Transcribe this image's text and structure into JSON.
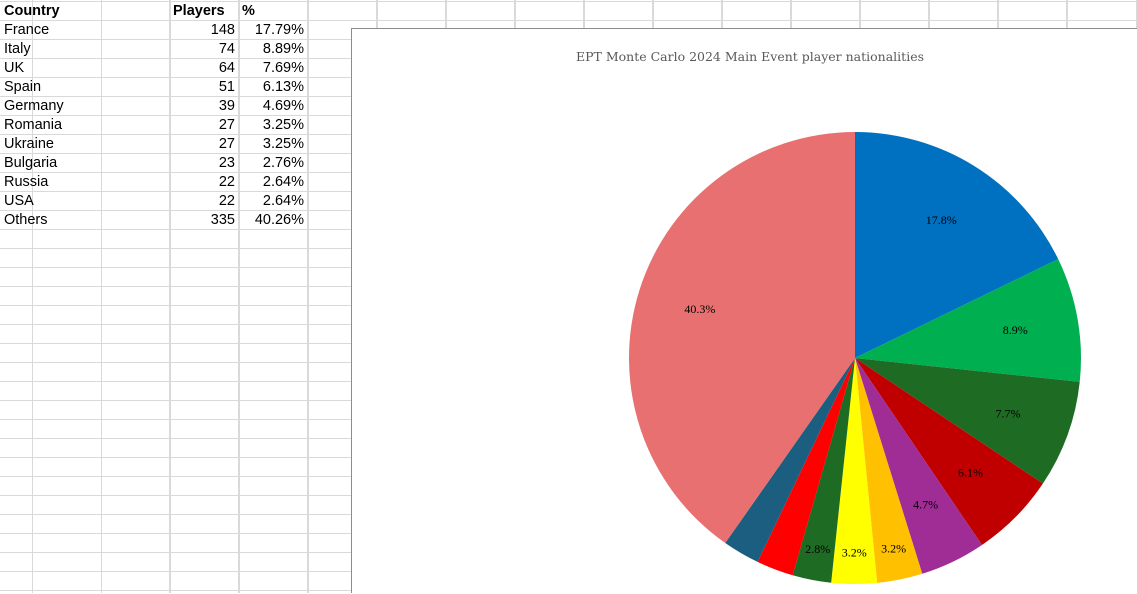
{
  "sheet": {
    "headers": {
      "country": "Country",
      "players": "Players",
      "percent": "%"
    },
    "rows": [
      {
        "country": "France",
        "players": "148",
        "percent": "17.79%"
      },
      {
        "country": "Italy",
        "players": "74",
        "percent": "8.89%"
      },
      {
        "country": "UK",
        "players": "64",
        "percent": "7.69%"
      },
      {
        "country": "Spain",
        "players": "51",
        "percent": "6.13%"
      },
      {
        "country": "Germany",
        "players": "39",
        "percent": "4.69%"
      },
      {
        "country": "Romania",
        "players": "27",
        "percent": "3.25%"
      },
      {
        "country": "Ukraine",
        "players": "27",
        "percent": "3.25%"
      },
      {
        "country": "Bulgaria",
        "players": "23",
        "percent": "2.76%"
      },
      {
        "country": "Russia",
        "players": "22",
        "percent": "2.64%"
      },
      {
        "country": "USA",
        "players": "22",
        "percent": "2.64%"
      },
      {
        "country": "Others",
        "players": "335",
        "percent": "40.26%"
      }
    ]
  },
  "chart_data": {
    "type": "pie",
    "title": "EPT Monte Carlo 2024 Main Event player nationalities",
    "categories": [
      "France",
      "Italy",
      "UK",
      "Spain",
      "Germany",
      "Romania",
      "Ukraine",
      "Bulgaria",
      "Russia",
      "USA",
      "Others"
    ],
    "values": [
      148,
      74,
      64,
      51,
      39,
      27,
      27,
      23,
      22,
      22,
      335
    ],
    "labels": [
      "17.8%",
      "8.9%",
      "7.7%",
      "6.1%",
      "4.7%",
      "3.2%",
      "3.2%",
      "2.8%",
      "",
      "",
      "40.3%"
    ],
    "colors": [
      "#0070c0",
      "#00b050",
      "#1e6b23",
      "#c00000",
      "#a02c96",
      "#ffc000",
      "#ffff00",
      "#1e6b23",
      "#ff0000",
      "#1b5e80",
      "#e87070"
    ],
    "legend": "none"
  }
}
